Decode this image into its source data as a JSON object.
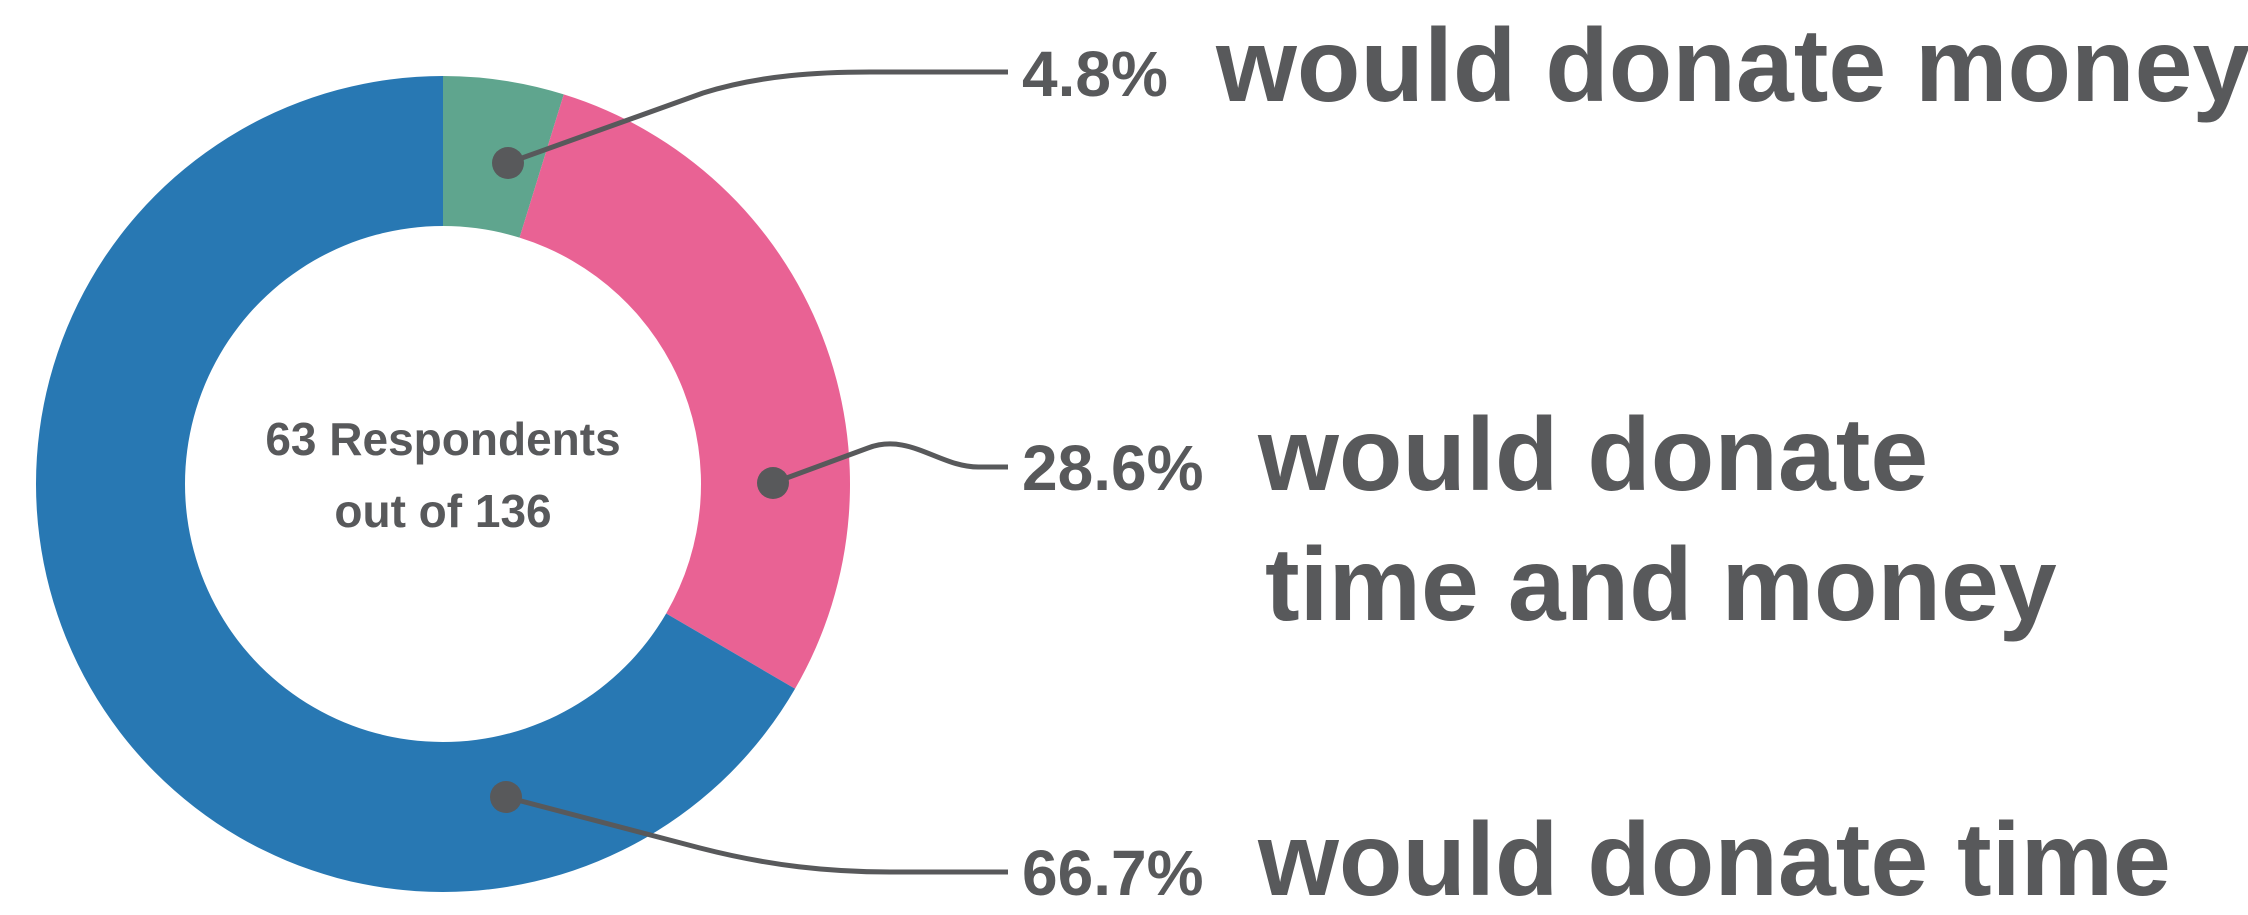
{
  "chart_data": {
    "type": "pie",
    "variant": "donut",
    "center_text": [
      "63 Respondents",
      "out of 136"
    ],
    "slices": [
      {
        "percent_label": "4.8%",
        "value": 4.8,
        "label_lines": [
          "would donate money"
        ],
        "color": "#5fa58e"
      },
      {
        "percent_label": "28.6%",
        "value": 28.6,
        "label_lines": [
          "would donate",
          "time and money"
        ],
        "color": "#e96294"
      },
      {
        "percent_label": "66.7%",
        "value": 66.7,
        "label_lines": [
          "would donate time"
        ],
        "color": "#2878b3"
      }
    ],
    "start": "12 o'clock",
    "direction": "clockwise",
    "leader_color": "#58595b"
  }
}
